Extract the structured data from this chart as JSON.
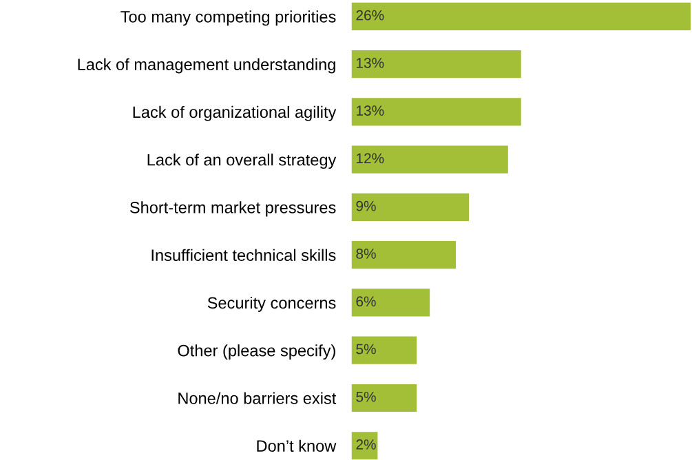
{
  "chart_data": {
    "type": "bar",
    "orientation": "horizontal",
    "categories": [
      "Too many competing priorities",
      "Lack of management understanding",
      "Lack of organizational agility",
      "Lack of an overall strategy",
      "Short-term market pressures",
      "Insufficient technical skills",
      "Security concerns",
      "Other (please specify)",
      "None/no barriers exist",
      "Don’t know"
    ],
    "values": [
      26,
      13,
      13,
      12,
      9,
      8,
      6,
      5,
      5,
      2
    ],
    "value_labels": [
      "26%",
      "13%",
      "13%",
      "12%",
      "9%",
      "8%",
      "6%",
      "5%",
      "5%",
      "2%"
    ],
    "color": "#a3bf38",
    "grid": false,
    "legend": false
  }
}
